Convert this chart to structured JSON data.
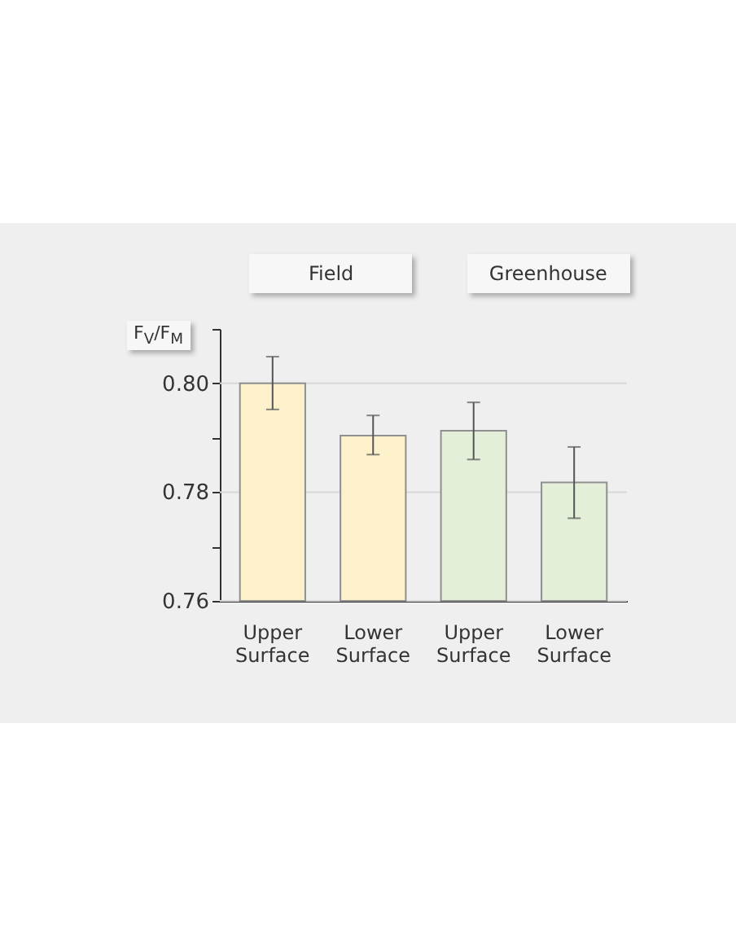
{
  "chart_data": {
    "type": "bar",
    "ylabel": "F$_{V}$/F$_{M}$",
    "annotations": [
      "Field",
      "Greenhouse"
    ],
    "categories": [
      "Upper Surface",
      "Lower Surface",
      "Upper Surface",
      "Lower Surface"
    ],
    "values": [
      0.8,
      0.7904,
      0.7913,
      0.7818
    ],
    "errors": [
      [
        0.7952,
        0.8049
      ],
      [
        0.7869,
        0.7941
      ],
      [
        0.786,
        0.7965
      ],
      [
        0.7752,
        0.7883
      ]
    ],
    "colors": [
      "#fdf1cc",
      "#fdf1cc",
      "#e3efd8",
      "#e3efd8"
    ],
    "ylim": [
      0.76,
      0.81
    ],
    "yticks": [
      {
        "value": 0.76,
        "label": "0.76"
      },
      {
        "value": 0.77,
        "label": null
      },
      {
        "value": 0.78,
        "label": "0.78"
      },
      {
        "value": 0.79,
        "label": null
      },
      {
        "value": 0.8,
        "label": "0.80"
      },
      {
        "value": 0.81,
        "label": null
      }
    ],
    "grid": "y"
  }
}
